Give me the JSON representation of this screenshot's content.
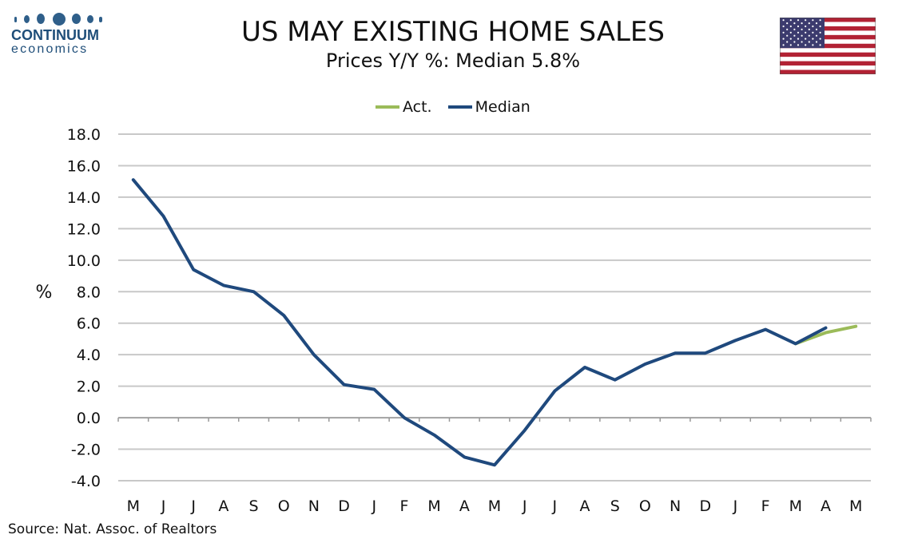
{
  "logo": {
    "name": "CONTINUUM",
    "sub": "economics"
  },
  "header": {
    "title": "US MAY EXISTING HOME SALES",
    "subtitle": "Prices Y/Y %: Median 5.8%"
  },
  "source": "Source: Nat. Assoc. of Realtors",
  "colors": {
    "act": "#9bbb59",
    "median": "#1f497d",
    "grid": "#c8c8c8",
    "axis": "#999999"
  },
  "flag_icon": "us-flag-icon",
  "chart_data": {
    "type": "line",
    "title": "",
    "xlabel": "",
    "ylabel": "%",
    "ylim": [
      -4,
      18
    ],
    "yticks": [
      "18.0",
      "16.0",
      "14.0",
      "12.0",
      "10.0",
      "8.0",
      "6.0",
      "4.0",
      "2.0",
      "0.0",
      "-2.0",
      "-4.0"
    ],
    "grid": true,
    "legend_position": "top-center",
    "categories": [
      "M",
      "J",
      "J",
      "A",
      "S",
      "O",
      "N",
      "D",
      "J",
      "F",
      "M",
      "A",
      "M",
      "J",
      "J",
      "A",
      "S",
      "O",
      "N",
      "D",
      "J",
      "F",
      "M",
      "A",
      "M"
    ],
    "series": [
      {
        "name": "Act.",
        "color": "#9bbb59",
        "values": [
          null,
          null,
          null,
          null,
          null,
          null,
          null,
          null,
          null,
          null,
          null,
          null,
          null,
          null,
          null,
          null,
          null,
          null,
          null,
          null,
          null,
          null,
          4.7,
          5.4,
          5.8
        ]
      },
      {
        "name": "Median",
        "color": "#1f497d",
        "values": [
          15.1,
          12.8,
          9.4,
          8.4,
          8.0,
          6.5,
          4.0,
          2.1,
          1.8,
          0.0,
          -1.1,
          -2.5,
          -3.0,
          -0.8,
          1.7,
          3.2,
          2.4,
          3.4,
          4.1,
          4.1,
          4.9,
          5.6,
          4.7,
          5.7,
          null
        ]
      }
    ]
  }
}
